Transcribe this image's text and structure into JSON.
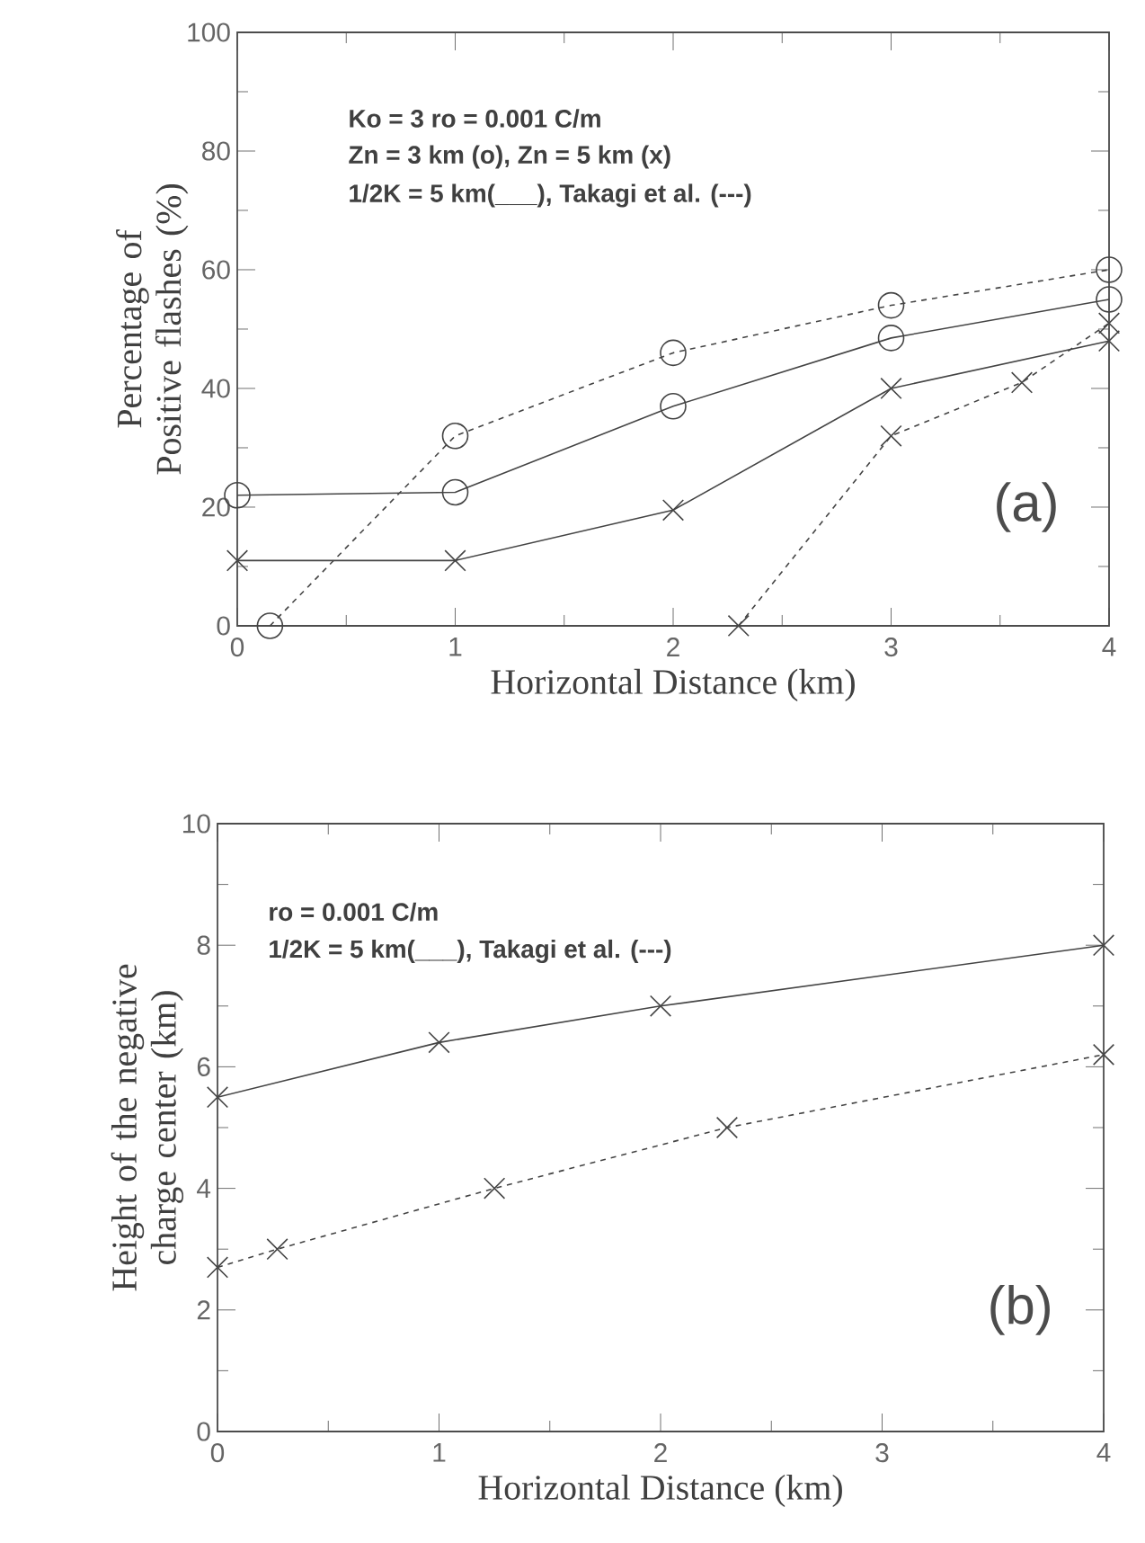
{
  "chart_data": [
    {
      "type": "line",
      "xlabel": "Horizontal Distance (km)",
      "ylabel": "Percentage of Positive flashes (%)",
      "xlim": [
        0,
        4
      ],
      "ylim": [
        0,
        100
      ],
      "xticks": [
        0,
        1,
        2,
        3,
        4
      ],
      "yticks": [
        0,
        20,
        40,
        60,
        80,
        100
      ],
      "annotations": [
        "Ko = 3     ro = 0.001 C/m",
        "Zn = 3 km (o), Zn = 5 km (x)",
        "1/2K = 5 km(___), Takagi et al. (---)",
        "(a)"
      ],
      "series": [
        {
          "color": "#444444",
          "marker": "circle",
          "line_style": "solid",
          "x": [
            0,
            1,
            2,
            3,
            4
          ],
          "values": [
            22,
            22.5,
            37,
            48.5,
            55
          ]
        },
        {
          "color": "#444444",
          "marker": "circle",
          "line_style": "dashed",
          "x": [
            0.15,
            1,
            2,
            3,
            4
          ],
          "values": [
            0,
            32,
            46,
            54,
            60
          ]
        },
        {
          "color": "#444444",
          "marker": "cross",
          "line_style": "solid",
          "x": [
            0,
            1,
            2,
            3,
            4
          ],
          "values": [
            11,
            11,
            19.5,
            40,
            48
          ]
        },
        {
          "color": "#444444",
          "marker": "cross",
          "line_style": "dashed",
          "x": [
            2.3,
            3,
            3.6,
            4
          ],
          "values": [
            0,
            32,
            41,
            51
          ]
        }
      ]
    },
    {
      "type": "line",
      "xlabel": "Horizontal Distance (km)",
      "ylabel": "Height of the negative charge center (km)",
      "xlim": [
        0,
        4
      ],
      "ylim": [
        0,
        10
      ],
      "xticks": [
        0,
        1,
        2,
        3,
        4
      ],
      "yticks": [
        0,
        2,
        4,
        6,
        8,
        10
      ],
      "annotations": [
        "ro = 0.001 C/m",
        "1/2K = 5 km(___), Takagi et al. (---)",
        "(b)"
      ],
      "series": [
        {
          "color": "#444444",
          "marker": "cross",
          "line_style": "solid",
          "x": [
            0,
            1,
            2,
            4
          ],
          "values": [
            5.5,
            6.4,
            7,
            8
          ]
        },
        {
          "color": "#444444",
          "marker": "cross",
          "line_style": "dashed",
          "x": [
            0,
            0.27,
            1.25,
            2.3,
            4
          ],
          "values": [
            2.7,
            3,
            4,
            5,
            6.2
          ]
        }
      ]
    }
  ]
}
